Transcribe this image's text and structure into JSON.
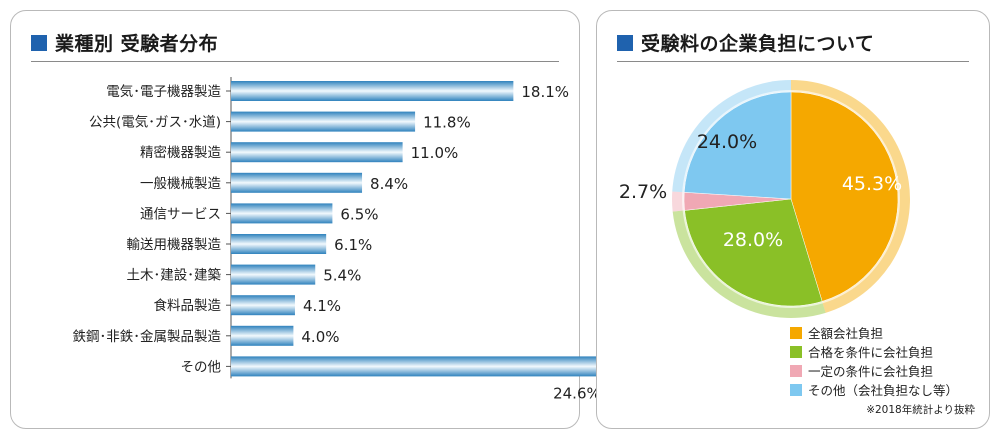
{
  "left_panel": {
    "title": "業種別 受験者分布"
  },
  "right_panel": {
    "title": "受験料の企業負担について",
    "note": "※2018年統計より抜粋"
  },
  "colors": {
    "accent": "#1f62ae",
    "bar_dark": "#2a7bb5",
    "bar_light": "#eef7fc",
    "pie_full": "#f5a800",
    "pie_conditional": "#8ac027",
    "pie_partial": "#f0a8b4",
    "pie_other": "#7ec8f0"
  },
  "chart_data": [
    {
      "type": "bar",
      "orientation": "horizontal",
      "categories": [
        "電気･電子機器製造",
        "公共(電気･ガス･水道)",
        "精密機器製造",
        "一般機械製造",
        "通信サービス",
        "輸送用機器製造",
        "土木･建設･建築",
        "食料品製造",
        "鉄鋼･非鉄･金属製品製造",
        "その他"
      ],
      "values": [
        18.1,
        11.8,
        11.0,
        8.4,
        6.5,
        6.1,
        5.4,
        4.1,
        4.0,
        24.6
      ],
      "value_labels": [
        "18.1%",
        "11.8%",
        "11.0%",
        "8.4%",
        "6.5%",
        "6.1%",
        "5.4%",
        "4.1%",
        "4.0%",
        "24.6%"
      ],
      "unit": "%",
      "grid": false
    },
    {
      "type": "pie",
      "slices": [
        {
          "label": "全額会社負担",
          "value": 45.3,
          "value_label": "45.3%",
          "color": "#f5a800"
        },
        {
          "label": "合格を条件に会社負担",
          "value": 28.0,
          "value_label": "28.0%",
          "color": "#8ac027"
        },
        {
          "label": "一定の条件に会社負担",
          "value": 2.7,
          "value_label": "2.7%",
          "color": "#f0a8b4"
        },
        {
          "label": "その他（会社負担なし等）",
          "value": 24.0,
          "value_label": "24.0%",
          "color": "#7ec8f0"
        }
      ],
      "start": "12 o'clock",
      "direction": "clockwise",
      "legend_position": "bottom-right"
    }
  ]
}
